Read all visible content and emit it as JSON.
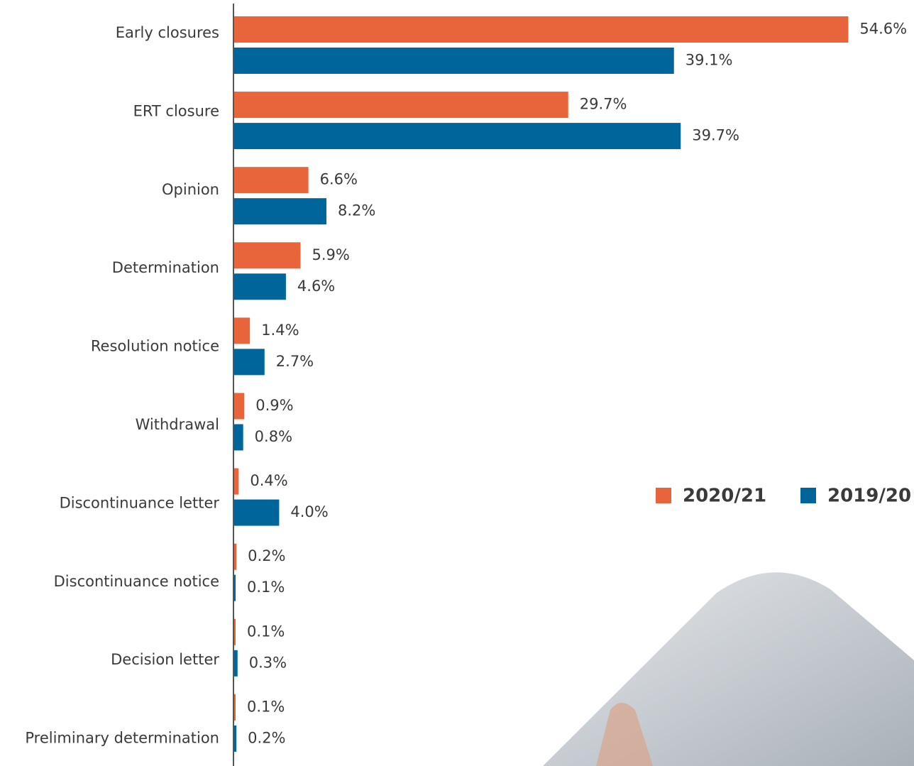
{
  "chart_data": {
    "type": "bar",
    "orientation": "horizontal",
    "categories": [
      "Early closures",
      "ERT closure",
      "Opinion",
      "Determination",
      "Resolution notice",
      "Withdrawal",
      "Discontinuance letter",
      "Discontinuance notice",
      "Decision letter",
      "Preliminary determination"
    ],
    "series": [
      {
        "name": "2020/21",
        "color": "#e8643a",
        "values": [
          54.6,
          29.7,
          6.6,
          5.9,
          1.4,
          0.9,
          0.4,
          0.2,
          0.1,
          0.1
        ],
        "value_labels": [
          "54.6%",
          "29.7%",
          "6.6%",
          "5.9%",
          "1.4%",
          "0.9%",
          "0.4%",
          "0.2%",
          "0.1%",
          "0.1%"
        ]
      },
      {
        "name": "2019/20",
        "color": "#00659a",
        "values": [
          39.1,
          39.7,
          8.2,
          4.6,
          2.7,
          0.8,
          4.0,
          0.1,
          0.3,
          0.2
        ],
        "value_labels": [
          "39.1%",
          "39.7%",
          "8.2%",
          "4.6%",
          "2.7%",
          "0.8%",
          "4.0%",
          "0.1%",
          "0.3%",
          "0.2%"
        ]
      }
    ]
  }
}
